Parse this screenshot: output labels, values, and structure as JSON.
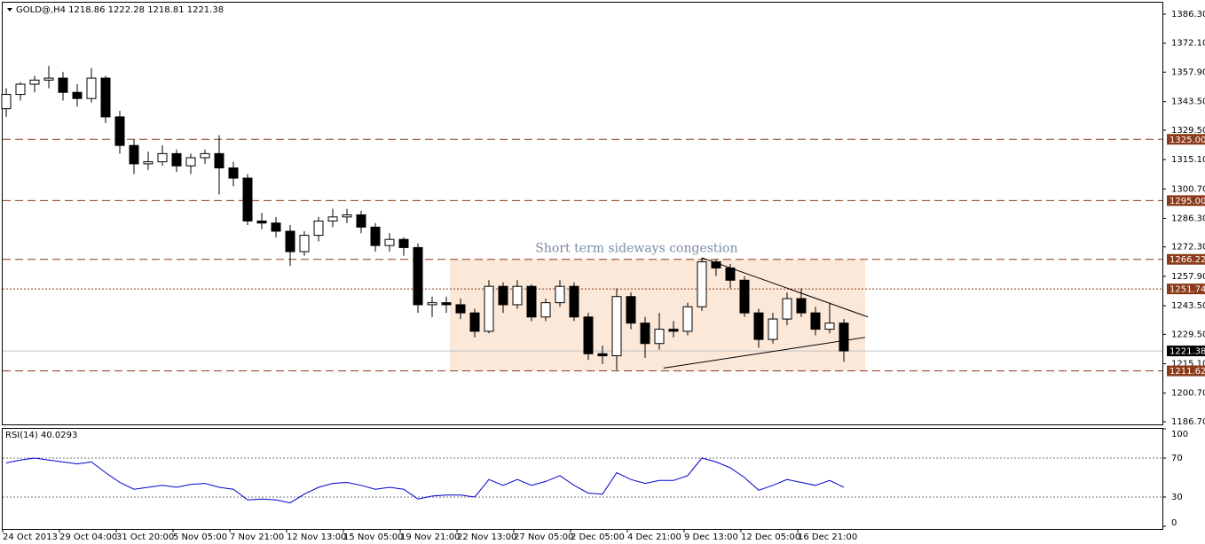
{
  "chart_data": [
    {
      "type": "candlestick",
      "title": "GOLD@,H4  1218.86 1222.28 1218.81 1221.38",
      "categories": [
        "24 Oct 2013",
        null,
        null,
        null,
        "29 Oct 04:00",
        null,
        null,
        null,
        "31 Oct 20:00",
        null,
        null,
        null,
        "5 Nov 05:00",
        null,
        null,
        null,
        "7 Nov 21:00",
        null,
        null,
        null,
        "12 Nov 13:00",
        null,
        null,
        null,
        "15 Nov 05:00",
        null,
        null,
        null,
        "19 Nov 21:00",
        null,
        null,
        null,
        "22 Nov 13:00",
        null,
        null,
        null,
        "27 Nov 05:00",
        null,
        null,
        null,
        "2 Dec 05:00",
        null,
        null,
        null,
        "4 Dec 21:00",
        null,
        null,
        null,
        "9 Dec 13:00",
        null,
        null,
        null,
        "12 Dec 05:00",
        null,
        null,
        null,
        "16 Dec 21:00",
        null,
        null,
        null
      ],
      "open": [
        1340,
        1347,
        1352,
        1354,
        1355,
        1348,
        1345,
        1355,
        1336,
        1322,
        1313,
        1314,
        1318,
        1312,
        1316,
        1318,
        1311,
        1306,
        1285,
        1284,
        1280,
        1270,
        1278,
        1285,
        1287,
        1288,
        1282,
        1273,
        1276,
        1272,
        1244,
        1245,
        1244,
        1240,
        1231,
        1253,
        1244,
        1253,
        1238,
        1245,
        1253,
        1238,
        1220,
        1219,
        1248,
        1235,
        1225,
        1232,
        1231,
        1243,
        1265,
        1262,
        1256,
        1240,
        1227,
        1237,
        1247,
        1240,
        1232,
        1235
      ],
      "high": [
        1350,
        1353,
        1356,
        1361,
        1358,
        1352,
        1360,
        1356,
        1339,
        1325,
        1319,
        1322,
        1320,
        1318,
        1320,
        1327,
        1314,
        1308,
        1289,
        1287,
        1283,
        1280,
        1287,
        1291,
        1291,
        1290,
        1284,
        1279,
        1277,
        1274,
        1248,
        1248,
        1247,
        1242,
        1256,
        1255,
        1256,
        1254,
        1247,
        1256,
        1255,
        1240,
        1224,
        1252,
        1250,
        1238,
        1240,
        1236,
        1245,
        1267,
        1266,
        1264,
        1258,
        1242,
        1240,
        1250,
        1252,
        1243,
        1245,
        1237
      ],
      "low": [
        1336,
        1344,
        1348,
        1350,
        1344,
        1341,
        1343,
        1333,
        1318,
        1308,
        1310,
        1312,
        1309,
        1308,
        1313,
        1298,
        1302,
        1283,
        1281,
        1277,
        1263,
        1268,
        1275,
        1282,
        1284,
        1279,
        1270,
        1270,
        1268,
        1240,
        1238,
        1240,
        1237,
        1228,
        1230,
        1240,
        1242,
        1236,
        1236,
        1243,
        1236,
        1217,
        1215,
        1212,
        1232,
        1218,
        1222,
        1228,
        1229,
        1241,
        1258,
        1252,
        1238,
        1223,
        1225,
        1234,
        1238,
        1229,
        1230,
        1216
      ],
      "close": [
        1347,
        1352,
        1354,
        1355,
        1348,
        1345,
        1355,
        1336,
        1322,
        1313,
        1314,
        1318,
        1312,
        1316,
        1318,
        1311,
        1306,
        1285,
        1284,
        1280,
        1270,
        1278,
        1285,
        1287,
        1288,
        1282,
        1273,
        1276,
        1272,
        1244,
        1245,
        1244,
        1240,
        1231,
        1253,
        1244,
        1253,
        1238,
        1245,
        1253,
        1238,
        1220,
        1219,
        1248,
        1235,
        1225,
        1232,
        1231,
        1243,
        1265,
        1262,
        1256,
        1240,
        1227,
        1237,
        1247,
        1240,
        1232,
        1235,
        1221.38
      ],
      "ylim": [
        1185.4,
        1391.93
      ],
      "yticks": [
        {
          "value": 1386.3,
          "label": "1386.30"
        },
        {
          "value": 1372.1,
          "label": "1372.10"
        },
        {
          "value": 1357.9,
          "label": "1357.90"
        },
        {
          "value": 1343.5,
          "label": "1343.50"
        },
        {
          "value": 1329.5,
          "label": "1329.50"
        },
        {
          "value": 1315.1,
          "label": "1315.10"
        },
        {
          "value": 1300.7,
          "label": "1300.70"
        },
        {
          "value": 1286.3,
          "label": "1286.30"
        },
        {
          "value": 1272.3,
          "label": "1272.30"
        },
        {
          "value": 1257.9,
          "label": "1257.90"
        },
        {
          "value": 1243.5,
          "label": "1243.50"
        },
        {
          "value": 1229.5,
          "label": "1229.50"
        },
        {
          "value": 1215.1,
          "label": "1215.10"
        },
        {
          "value": 1200.7,
          "label": "1200.70"
        },
        {
          "value": 1186.7,
          "label": "1186.70"
        }
      ],
      "levels": [
        {
          "value": 1325,
          "label": "1325.00",
          "style": "dashed",
          "color": "#8b3a1a"
        },
        {
          "value": 1295,
          "label": "1295.00",
          "style": "dashed",
          "color": "#8b3a1a"
        },
        {
          "value": 1266.22,
          "label": "1266.22",
          "style": "dashed",
          "color": "#8b3a1a"
        },
        {
          "value": 1251.74,
          "label": "1251.74",
          "style": "dotted",
          "color": "#8b3a1a"
        },
        {
          "value": 1211.62,
          "label": "1211.62",
          "style": "dashed",
          "color": "#8b3a1a"
        },
        {
          "value": 1221.38,
          "label": "1221.38",
          "style": "solid",
          "color": "#000000"
        }
      ],
      "zone": {
        "x": [
          31.25,
          60.5
        ],
        "y": [
          1211.62,
          1266.22
        ],
        "color": "#fbe8d9"
      },
      "annotation": {
        "text": "Short term sideways congestion",
        "x": 44.4,
        "y": 1271.5
      },
      "trendlines": [
        {
          "x": [
            49,
            60.7
          ],
          "y": [
            1267,
            1238
          ]
        },
        {
          "x": [
            46.3,
            60.5
          ],
          "y": [
            1213,
            1228
          ]
        }
      ]
    },
    {
      "type": "line",
      "title": "RSI(14) 40.0293",
      "color": "#0000cc",
      "values": [
        65,
        68,
        70,
        68,
        66,
        64,
        66,
        55,
        45,
        38,
        40,
        42,
        40,
        43,
        44,
        40,
        38,
        27,
        28,
        27,
        24,
        33,
        40,
        44,
        45,
        42,
        38,
        40,
        38,
        28,
        31,
        32,
        32,
        30,
        48,
        42,
        48,
        42,
        46,
        52,
        42,
        34,
        33,
        55,
        48,
        44,
        47,
        47,
        52,
        70,
        66,
        60,
        50,
        37,
        42,
        48,
        45,
        42,
        47,
        40.0293
      ],
      "ylim": [
        0,
        100
      ],
      "yticks": [
        100,
        70,
        30,
        0
      ],
      "levels": [
        70,
        30
      ]
    }
  ]
}
